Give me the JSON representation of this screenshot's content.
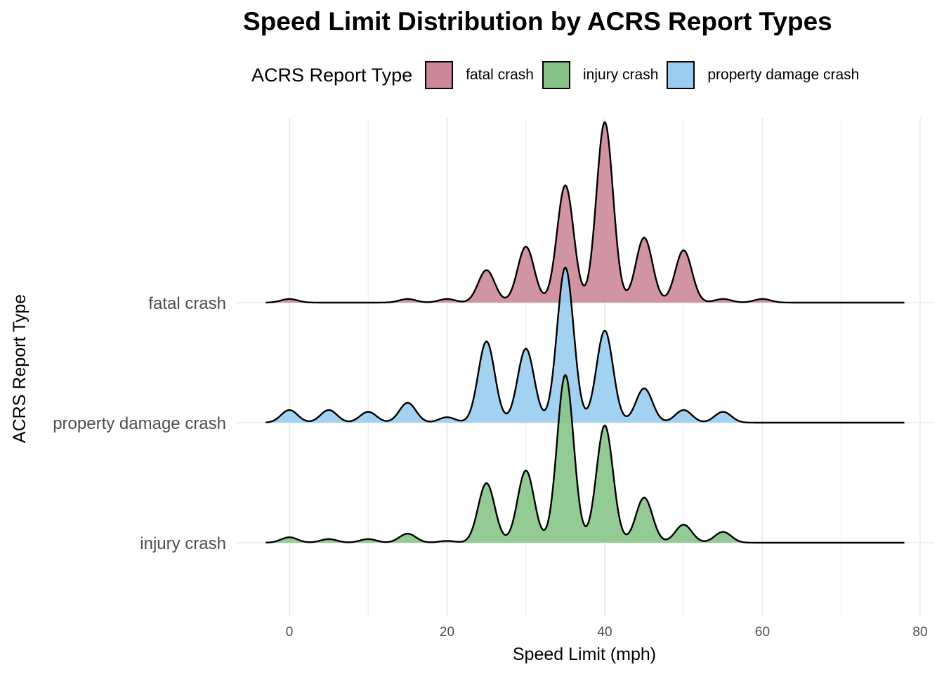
{
  "chart_data": {
    "type": "ridgeline",
    "title": "Speed Limit Distribution by ACRS Report Types",
    "xlabel": "Speed Limit (mph)",
    "ylabel": "ACRS Report Type",
    "legend_title": "ACRS Report Type",
    "legend_position": "top",
    "xlim": [
      -3,
      78
    ],
    "x_ticks": [
      0,
      20,
      40,
      60,
      80
    ],
    "grid": true,
    "series": [
      {
        "name": "fatal crash",
        "color": "#cc8899",
        "peaks": [
          {
            "x": 0,
            "h": 0.02
          },
          {
            "x": 15,
            "h": 0.02
          },
          {
            "x": 20,
            "h": 0.02
          },
          {
            "x": 25,
            "h": 0.18
          },
          {
            "x": 30,
            "h": 0.31
          },
          {
            "x": 35,
            "h": 0.65
          },
          {
            "x": 40,
            "h": 1.0
          },
          {
            "x": 45,
            "h": 0.36
          },
          {
            "x": 50,
            "h": 0.29
          },
          {
            "x": 55,
            "h": 0.02
          },
          {
            "x": 60,
            "h": 0.02
          }
        ]
      },
      {
        "name": "property damage crash",
        "color": "#99ccee",
        "peaks": [
          {
            "x": 0,
            "h": 0.07
          },
          {
            "x": 5,
            "h": 0.07
          },
          {
            "x": 10,
            "h": 0.06
          },
          {
            "x": 15,
            "h": 0.11
          },
          {
            "x": 20,
            "h": 0.03
          },
          {
            "x": 25,
            "h": 0.45
          },
          {
            "x": 30,
            "h": 0.41
          },
          {
            "x": 35,
            "h": 0.86
          },
          {
            "x": 40,
            "h": 0.51
          },
          {
            "x": 45,
            "h": 0.19
          },
          {
            "x": 50,
            "h": 0.07
          },
          {
            "x": 55,
            "h": 0.06
          }
        ]
      },
      {
        "name": "injury crash",
        "color": "#88c488",
        "peaks": [
          {
            "x": 0,
            "h": 0.03
          },
          {
            "x": 5,
            "h": 0.02
          },
          {
            "x": 10,
            "h": 0.02
          },
          {
            "x": 15,
            "h": 0.05
          },
          {
            "x": 20,
            "h": 0.01
          },
          {
            "x": 25,
            "h": 0.33
          },
          {
            "x": 30,
            "h": 0.4
          },
          {
            "x": 35,
            "h": 0.93
          },
          {
            "x": 40,
            "h": 0.65
          },
          {
            "x": 45,
            "h": 0.25
          },
          {
            "x": 50,
            "h": 0.1
          },
          {
            "x": 55,
            "h": 0.06
          }
        ]
      }
    ],
    "y_categories": [
      "fatal crash",
      "property damage crash",
      "injury crash"
    ]
  }
}
